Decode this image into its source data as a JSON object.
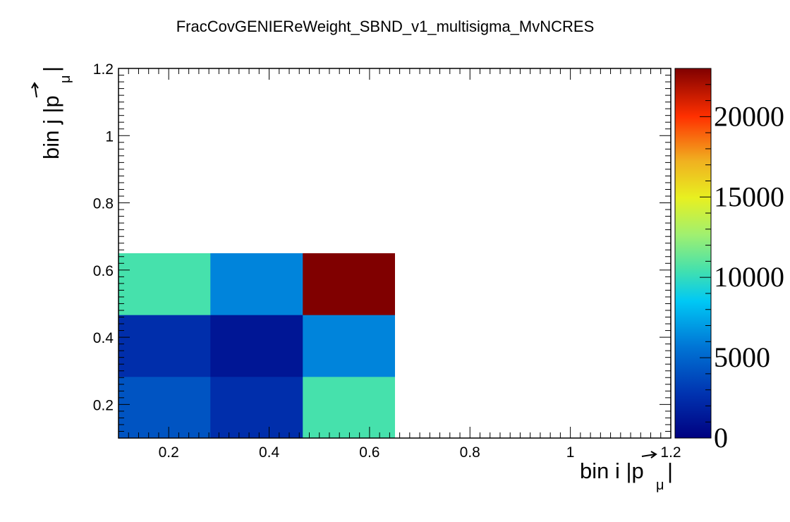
{
  "chart_data": {
    "type": "heatmap",
    "title": "FracCovGENIEReWeight_SBND_v1_multisigma_MvNCRES",
    "xlabel": {
      "main": "bin i |",
      "vec": "p",
      "sub": "μ",
      "tail": "|"
    },
    "ylabel": {
      "main": "bin j |",
      "vec": "p",
      "sub": "μ",
      "tail": "|"
    },
    "xlim": [
      0.1,
      1.2
    ],
    "ylim": [
      0.1,
      1.2
    ],
    "x_ticks": [
      0.2,
      0.4,
      0.6,
      0.8,
      1,
      1.2
    ],
    "x_tick_labels": [
      "0.2",
      "0.4",
      "0.6",
      "0.8",
      "1",
      "1.2"
    ],
    "y_ticks": [
      0.2,
      0.4,
      0.6,
      0.8,
      1,
      1.2
    ],
    "y_tick_labels": [
      "0.2",
      "0.4",
      "0.6",
      "0.8",
      "1",
      "1.2"
    ],
    "x_bin_edges": [
      0.1,
      0.283,
      0.467,
      0.65
    ],
    "y_bin_edges": [
      0.1,
      0.283,
      0.467,
      0.65
    ],
    "z_values": [
      [
        4200,
        2500,
        10500
      ],
      [
        2500,
        1200,
        6200
      ],
      [
        10500,
        6200,
        23000
      ]
    ],
    "zlim": [
      0,
      23000
    ],
    "palette_ticks": [
      0,
      5000,
      10000,
      15000,
      20000
    ],
    "palette_tick_labels": [
      "0",
      "5000",
      "10000",
      "15000",
      "20000"
    ],
    "colormap": "jet",
    "grid": false
  }
}
